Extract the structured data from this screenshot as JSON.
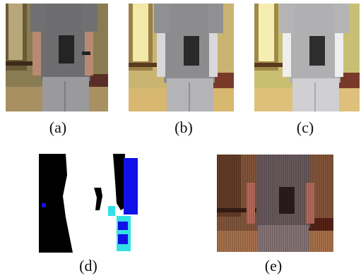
{
  "figure": {
    "panels": [
      {
        "id": "a",
        "caption": "(a)",
        "content": "color photo of person standing with concealed gun under shirt"
      },
      {
        "id": "b",
        "caption": "(b)",
        "content": "enhanced image version 1"
      },
      {
        "id": "c",
        "caption": "(c)",
        "content": "enhanced image version 2"
      },
      {
        "id": "d",
        "caption": "(d)",
        "content": "segmentation map black white blue"
      },
      {
        "id": "e",
        "caption": "(e)",
        "content": "striped fused image"
      }
    ]
  },
  "colors": {
    "wall": "#8f8154",
    "shirt": "#6d6d6f",
    "pants": "#9a9a9c",
    "gun": "#1e1e1e",
    "segment_blue": "#1010e8",
    "segment_cyan": "#33e0e6"
  }
}
